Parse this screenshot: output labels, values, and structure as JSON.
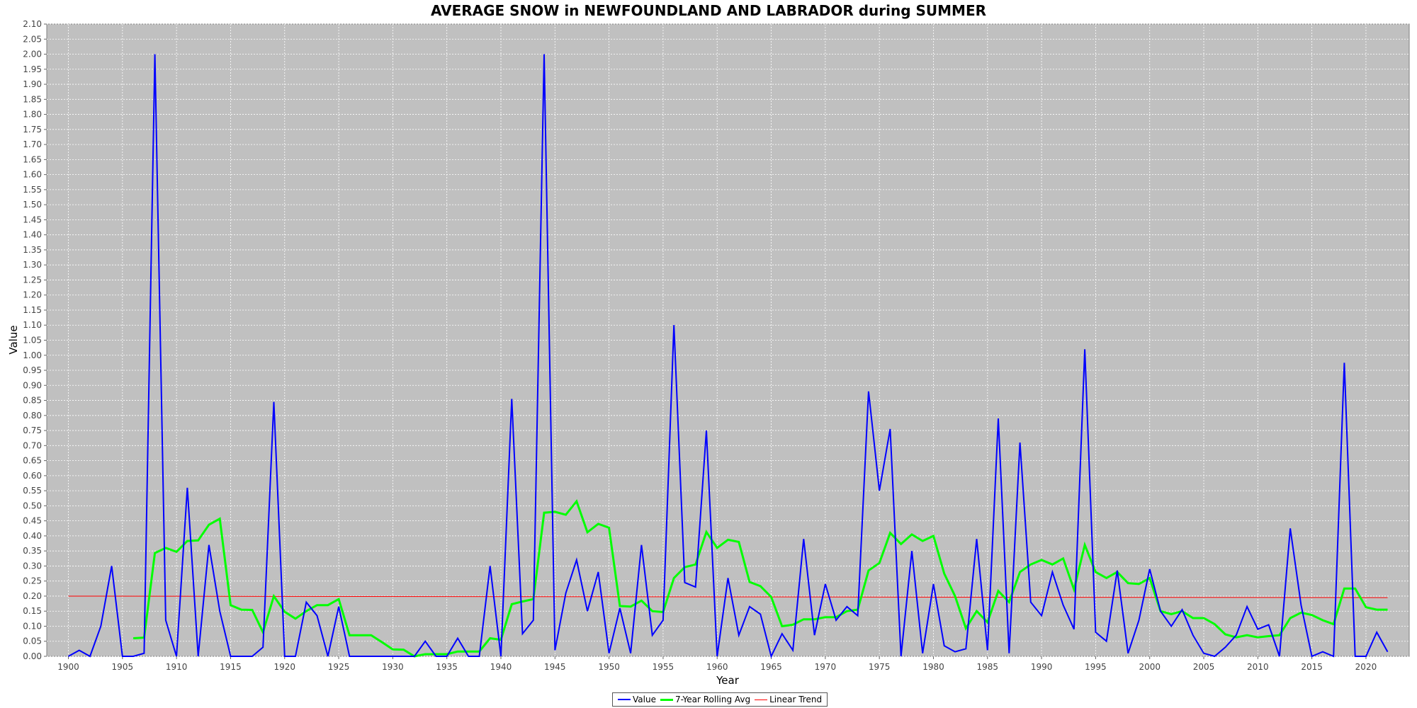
{
  "chart_data": {
    "type": "line",
    "title": "AVERAGE SNOW in NEWFOUNDLAND AND LABRADOR during SUMMER",
    "xlabel": "Year",
    "ylabel": "Value",
    "xlim": [
      1898,
      2024
    ],
    "ylim": [
      0,
      2.1
    ],
    "x_ticks": [
      1900,
      1905,
      1910,
      1915,
      1920,
      1925,
      1930,
      1935,
      1940,
      1945,
      1950,
      1955,
      1960,
      1965,
      1970,
      1975,
      1980,
      1985,
      1990,
      1995,
      2000,
      2005,
      2010,
      2015,
      2020
    ],
    "y_ticks": [
      "0.00",
      "0.05",
      "0.10",
      "0.15",
      "0.20",
      "0.25",
      "0.30",
      "0.35",
      "0.40",
      "0.45",
      "0.50",
      "0.55",
      "0.60",
      "0.65",
      "0.70",
      "0.75",
      "0.80",
      "0.85",
      "0.90",
      "0.95",
      "1.00",
      "1.05",
      "1.10",
      "1.15",
      "1.20",
      "1.25",
      "1.30",
      "1.35",
      "1.40",
      "1.45",
      "1.50",
      "1.55",
      "1.60",
      "1.65",
      "1.70",
      "1.75",
      "1.80",
      "1.85",
      "1.90",
      "1.95",
      "2.00",
      "2.05",
      "2.10"
    ],
    "grid": true,
    "legend_position": "bottom-center",
    "background_color": "#c0c0c0",
    "series": [
      {
        "name": "Value",
        "color": "#0000ff",
        "x": [
          1900,
          1901,
          1902,
          1903,
          1904,
          1905,
          1906,
          1907,
          1908,
          1909,
          1910,
          1911,
          1912,
          1913,
          1914,
          1915,
          1916,
          1917,
          1918,
          1919,
          1920,
          1921,
          1922,
          1923,
          1924,
          1925,
          1926,
          1927,
          1928,
          1929,
          1930,
          1931,
          1932,
          1933,
          1934,
          1935,
          1936,
          1937,
          1938,
          1939,
          1940,
          1941,
          1942,
          1943,
          1944,
          1945,
          1946,
          1947,
          1948,
          1949,
          1950,
          1951,
          1952,
          1953,
          1954,
          1955,
          1956,
          1957,
          1958,
          1959,
          1960,
          1961,
          1962,
          1963,
          1964,
          1965,
          1966,
          1967,
          1968,
          1969,
          1970,
          1971,
          1972,
          1973,
          1974,
          1975,
          1976,
          1977,
          1978,
          1979,
          1980,
          1981,
          1982,
          1983,
          1984,
          1985,
          1986,
          1987,
          1988,
          1989,
          1990,
          1991,
          1992,
          1993,
          1994,
          1995,
          1996,
          1997,
          1998,
          1999,
          2000,
          2001,
          2002,
          2003,
          2004,
          2005,
          2006,
          2007,
          2008,
          2009,
          2010,
          2011,
          2012,
          2013,
          2014,
          2015,
          2016,
          2017,
          2018,
          2019,
          2020,
          2021,
          2022
        ],
        "y": [
          0,
          0.02,
          0,
          0.1,
          0.3,
          0,
          0,
          0.01,
          2.0,
          0.12,
          0,
          0.56,
          0,
          0.37,
          0.15,
          0,
          0,
          0,
          0.03,
          0.845,
          0,
          0,
          0.18,
          0.135,
          0,
          0.165,
          0,
          0,
          0,
          0,
          0,
          0,
          0,
          0.05,
          0,
          0,
          0.06,
          0,
          0,
          0.3,
          0,
          0.855,
          0.075,
          0.12,
          2.0,
          0.02,
          0.21,
          0.32,
          0.15,
          0.28,
          0.01,
          0.16,
          0.01,
          0.37,
          0.07,
          0.12,
          1.1,
          0.245,
          0.23,
          0.75,
          0,
          0.26,
          0.07,
          0.165,
          0.14,
          0,
          0.075,
          0.02,
          0.39,
          0.07,
          0.24,
          0.12,
          0.165,
          0.135,
          0.88,
          0.55,
          0.755,
          0,
          0.35,
          0.01,
          0.24,
          0.035,
          0.015,
          0.025,
          0.39,
          0.02,
          0.79,
          0.01,
          0.71,
          0.18,
          0.135,
          0.28,
          0.17,
          0.09,
          1.02,
          0.08,
          0.05,
          0.285,
          0.01,
          0.12,
          0.29,
          0.15,
          0.1,
          0.155,
          0.07,
          0.01,
          0,
          0.03,
          0.07,
          0.165,
          0.09,
          0.105,
          0,
          0.425,
          0.17,
          0,
          0.015,
          0,
          0.975,
          0,
          0,
          0.08,
          0.015
        ]
      },
      {
        "name": "7-Year Rolling Avg",
        "color": "#00ff00",
        "x": [
          1906,
          1907,
          1908,
          1909,
          1910,
          1911,
          1912,
          1913,
          1914,
          1915,
          1916,
          1917,
          1918,
          1919,
          1920,
          1921,
          1922,
          1923,
          1924,
          1925,
          1926,
          1927,
          1928,
          1929,
          1930,
          1931,
          1932,
          1933,
          1934,
          1935,
          1936,
          1937,
          1938,
          1939,
          1940,
          1941,
          1942,
          1943,
          1944,
          1945,
          1946,
          1947,
          1948,
          1949,
          1950,
          1951,
          1952,
          1953,
          1954,
          1955,
          1956,
          1957,
          1958,
          1959,
          1960,
          1961,
          1962,
          1963,
          1964,
          1965,
          1966,
          1967,
          1968,
          1969,
          1970,
          1971,
          1972,
          1973,
          1974,
          1975,
          1976,
          1977,
          1978,
          1979,
          1980,
          1981,
          1982,
          1983,
          1984,
          1985,
          1986,
          1987,
          1988,
          1989,
          1990,
          1991,
          1992,
          1993,
          1994,
          1995,
          1996,
          1997,
          1998,
          1999,
          2000,
          2001,
          2002,
          2003,
          2004,
          2005,
          2006,
          2007,
          2008,
          2009,
          2010,
          2011,
          2012,
          2013,
          2014,
          2015,
          2016,
          2017,
          2018,
          2019,
          2020,
          2021,
          2022
        ],
        "y": [
          0.06,
          0.062,
          0.343,
          0.36,
          0.347,
          0.383,
          0.385,
          0.437,
          0.457,
          0.17,
          0.155,
          0.154,
          0.08,
          0.2,
          0.148,
          0.125,
          0.15,
          0.17,
          0.17,
          0.19,
          0.07,
          0.07,
          0.07,
          0.047,
          0.023,
          0.022,
          0,
          0.007,
          0.007,
          0.007,
          0.016,
          0.016,
          0.016,
          0.06,
          0.055,
          0.173,
          0.182,
          0.19,
          0.477,
          0.48,
          0.47,
          0.515,
          0.412,
          0.44,
          0.427,
          0.167,
          0.165,
          0.185,
          0.15,
          0.147,
          0.26,
          0.296,
          0.305,
          0.413,
          0.36,
          0.387,
          0.38,
          0.247,
          0.233,
          0.197,
          0.1,
          0.105,
          0.123,
          0.123,
          0.13,
          0.13,
          0.15,
          0.155,
          0.285,
          0.31,
          0.41,
          0.373,
          0.405,
          0.383,
          0.4,
          0.275,
          0.2,
          0.093,
          0.15,
          0.113,
          0.217,
          0.18,
          0.28,
          0.305,
          0.32,
          0.305,
          0.325,
          0.222,
          0.37,
          0.28,
          0.26,
          0.28,
          0.243,
          0.24,
          0.26,
          0.15,
          0.14,
          0.15,
          0.127,
          0.127,
          0.107,
          0.073,
          0.063,
          0.07,
          0.063,
          0.067,
          0.07,
          0.127,
          0.145,
          0.137,
          0.12,
          0.107,
          0.225,
          0.225,
          0.163,
          0.155,
          0.155
        ]
      },
      {
        "name": "Linear Trend",
        "color": "#ff0000",
        "x": [
          1900,
          2022
        ],
        "y": [
          0.2,
          0.195
        ]
      }
    ]
  }
}
